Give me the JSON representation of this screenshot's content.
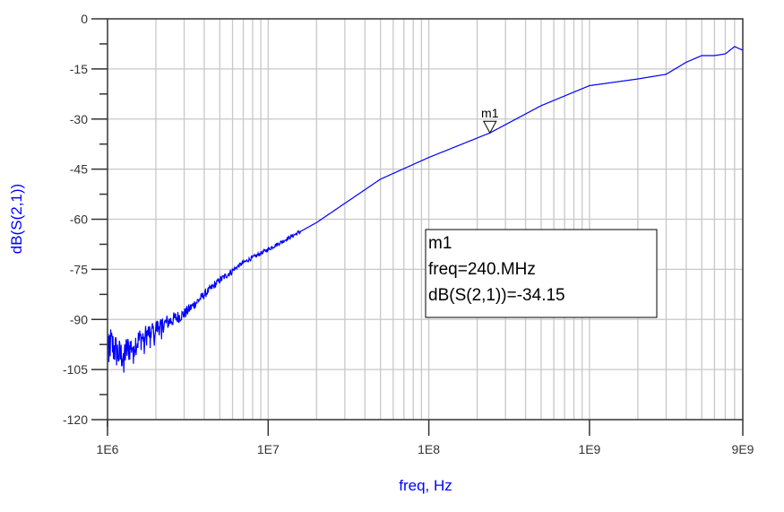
{
  "chart_data": {
    "type": "line",
    "title": "",
    "xlabel": "freq, Hz",
    "ylabel": "dB(S(2,1))",
    "xscale": "log",
    "xlim": [
      1000000,
      9000000000
    ],
    "ylim": [
      -120,
      0
    ],
    "grid": true,
    "legend": "none",
    "x_tick_labels": [
      "1E6",
      "1E7",
      "1E8",
      "1E9",
      "9E9"
    ],
    "x_tick_values": [
      1000000,
      10000000,
      100000000,
      1000000000,
      9000000000
    ],
    "y_tick_labels": [
      "0",
      "-15",
      "-30",
      "-45",
      "-60",
      "-75",
      "-90",
      "-105",
      "-120"
    ],
    "y_tick_values": [
      0,
      -15,
      -30,
      -45,
      -60,
      -75,
      -90,
      -105,
      -120
    ],
    "series": [
      {
        "name": "dB(S(2,1))",
        "color": "#0000ff",
        "x": [
          1000000,
          1200000,
          1500000,
          2000000,
          3000000,
          5000000,
          7000000,
          10000000,
          20000000,
          50000000,
          100000000,
          240000000,
          500000000,
          1000000000,
          2000000000,
          3000000000,
          4000000000,
          5000000000,
          6000000000,
          7000000000,
          8000000000,
          9000000000
        ],
        "y": [
          -95,
          -100,
          -96,
          -92,
          -88,
          -78,
          -73,
          -69,
          -61,
          -48,
          -41.5,
          -34.15,
          -26,
          -20,
          -18,
          -16.6,
          -13,
          -11,
          -11,
          -10.5,
          -8.3,
          -9.4
        ],
        "noise_region": {
          "x_from": 1000000,
          "x_to": 6000000,
          "min": -118,
          "max": -85
        }
      }
    ],
    "markers": [
      {
        "name": "m1",
        "freq_label": "freq=240.MHz",
        "value_label": "dB(S(2,1))=-34.15",
        "x": 240000000,
        "y": -34.15
      }
    ]
  }
}
